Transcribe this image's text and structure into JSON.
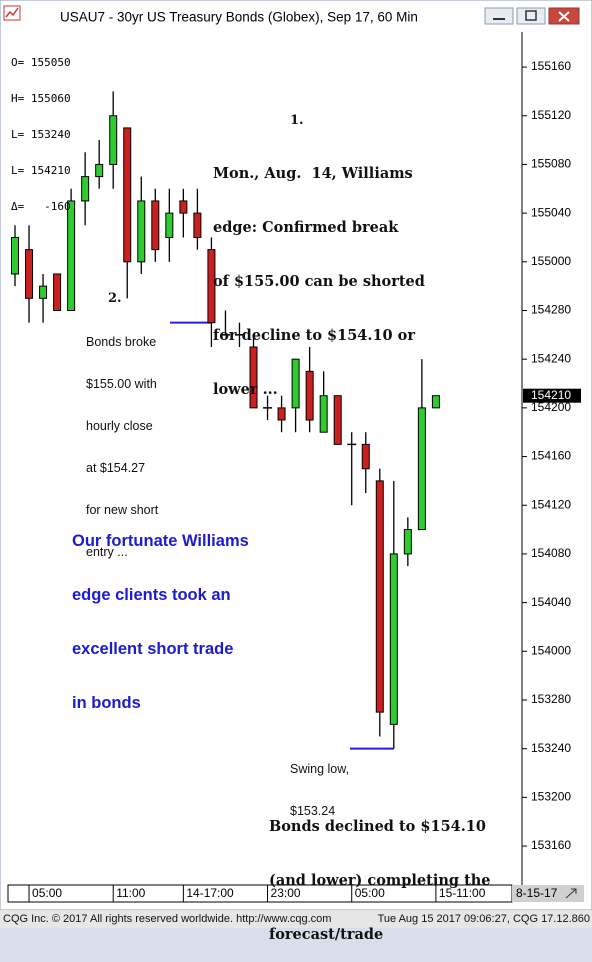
{
  "window_title": "USAU7 - 30yr US Treasury Bonds (Globex), Sep 17, 60 Min",
  "ohlc_box": [
    {
      "label": "O=",
      "value": 155050
    },
    {
      "label": "H=",
      "value": 155060
    },
    {
      "label": "L=",
      "value": 153240
    },
    {
      "label": "L=",
      "value": 154210
    },
    {
      "label": "Δ=",
      "value": -160
    }
  ],
  "chart_data": {
    "type": "candlestick",
    "categories": [
      null,
      "05:00",
      null,
      null,
      null,
      null,
      null,
      "11:00",
      null,
      null,
      null,
      null,
      "14-17:00",
      null,
      null,
      null,
      null,
      null,
      "23:00",
      null,
      null,
      null,
      null,
      null,
      "05:00",
      null,
      null,
      null,
      null,
      null,
      "15-11:00"
    ],
    "open": [
      154.96875,
      155.03125,
      154.90625,
      154.96875,
      154.875,
      155.15625,
      155.21875,
      155.25,
      155.34375,
      155.0,
      155.15625,
      155.0625,
      155.15625,
      155.125,
      155.03125,
      154.8125,
      154.8125,
      154.78125,
      154.625,
      154.625,
      154.625,
      154.71875,
      154.5625,
      154.65625,
      154.53125,
      154.53125,
      154.4375,
      153.8125,
      154.25,
      154.3125,
      154.625
    ],
    "high": [
      155.09375,
      155.09375,
      154.96875,
      154.96875,
      155.1875,
      155.28125,
      155.3125,
      155.4375,
      155.34375,
      155.21875,
      155.1875,
      155.1875,
      155.1875,
      155.1875,
      155.0625,
      154.875,
      154.84375,
      154.8125,
      154.65625,
      154.65625,
      154.75,
      154.78125,
      154.71875,
      154.65625,
      154.5625,
      154.5625,
      154.46875,
      154.4375,
      154.34375,
      154.75,
      154.65625
    ],
    "low": [
      154.9375,
      154.84375,
      154.84375,
      154.875,
      154.875,
      155.09375,
      155.1875,
      155.1875,
      154.90625,
      154.96875,
      155.0,
      155.0,
      155.0625,
      155.03125,
      154.78125,
      154.8125,
      154.78125,
      154.625,
      154.59375,
      154.5625,
      154.5625,
      154.5625,
      154.5625,
      154.53125,
      154.375,
      154.40625,
      153.78125,
      153.75,
      154.21875,
      154.3125,
      154.625
    ],
    "close": [
      155.0625,
      154.90625,
      154.9375,
      154.875,
      155.15625,
      155.21875,
      155.25,
      155.375,
      155.0,
      155.15625,
      155.03125,
      155.125,
      155.125,
      155.0625,
      154.84375,
      154.8125,
      154.8125,
      154.625,
      154.625,
      154.59375,
      154.75,
      154.59375,
      154.65625,
      154.53125,
      154.53125,
      154.46875,
      153.84375,
      154.25,
      154.3125,
      154.625,
      154.65625
    ],
    "up_color": "#2ecc2e",
    "down_color": "#cc1f1f",
    "ylim": [
      153.4,
      155.59
    ],
    "yticks": [
      {
        "value": 155.5,
        "label": "155160"
      },
      {
        "value": 155.375,
        "label": "155120"
      },
      {
        "value": 155.25,
        "label": "155080"
      },
      {
        "value": 155.125,
        "label": "155040"
      },
      {
        "value": 155.0,
        "label": "155000"
      },
      {
        "value": 154.875,
        "label": "154280"
      },
      {
        "value": 154.75,
        "label": "154240"
      },
      {
        "value": 154.625,
        "label": "154200"
      },
      {
        "value": 154.5,
        "label": "154160"
      },
      {
        "value": 154.375,
        "label": "154120"
      },
      {
        "value": 154.25,
        "label": "154080"
      },
      {
        "value": 154.125,
        "label": "154040"
      },
      {
        "value": 154.0,
        "label": "154000"
      },
      {
        "value": 153.875,
        "label": "153280"
      },
      {
        "value": 153.75,
        "label": "153240"
      },
      {
        "value": 153.625,
        "label": "153200"
      },
      {
        "value": 153.5,
        "label": "153160"
      }
    ],
    "last_price": {
      "value": 154.65625,
      "label": "154210"
    },
    "x_axis_date": "8-15-17",
    "annotations": [
      {
        "lines": [
          "1."
        ]
      },
      {
        "lines": [
          "Mon., Aug.  14, Williams",
          "edge: Confirmed break",
          "of $155.00 can be shorted",
          "for decline to $154.10 or",
          "lower ..."
        ]
      },
      {
        "lines": [
          "2."
        ]
      },
      {
        "lines": [
          "Bonds broke",
          "$155.00 with",
          "hourly close",
          "at $154.27",
          "for new short",
          "entry ..."
        ]
      },
      {
        "lines": [
          "Our fortunate Williams",
          "edge clients took an",
          "excellent short trade",
          "in bonds"
        ]
      },
      {
        "lines": [
          "Swing low,",
          "$153.24"
        ]
      },
      {
        "lines": [
          "Bonds declined to $154.10",
          "(and lower) completing the",
          "forecast/trade"
        ]
      }
    ]
  },
  "footer": {
    "left": "CQG Inc. © 2017 All rights reserved worldwide. http://www.cqg.com",
    "right": "Tue Aug 15 2017 09:06:27, CQG 17.12.860"
  }
}
